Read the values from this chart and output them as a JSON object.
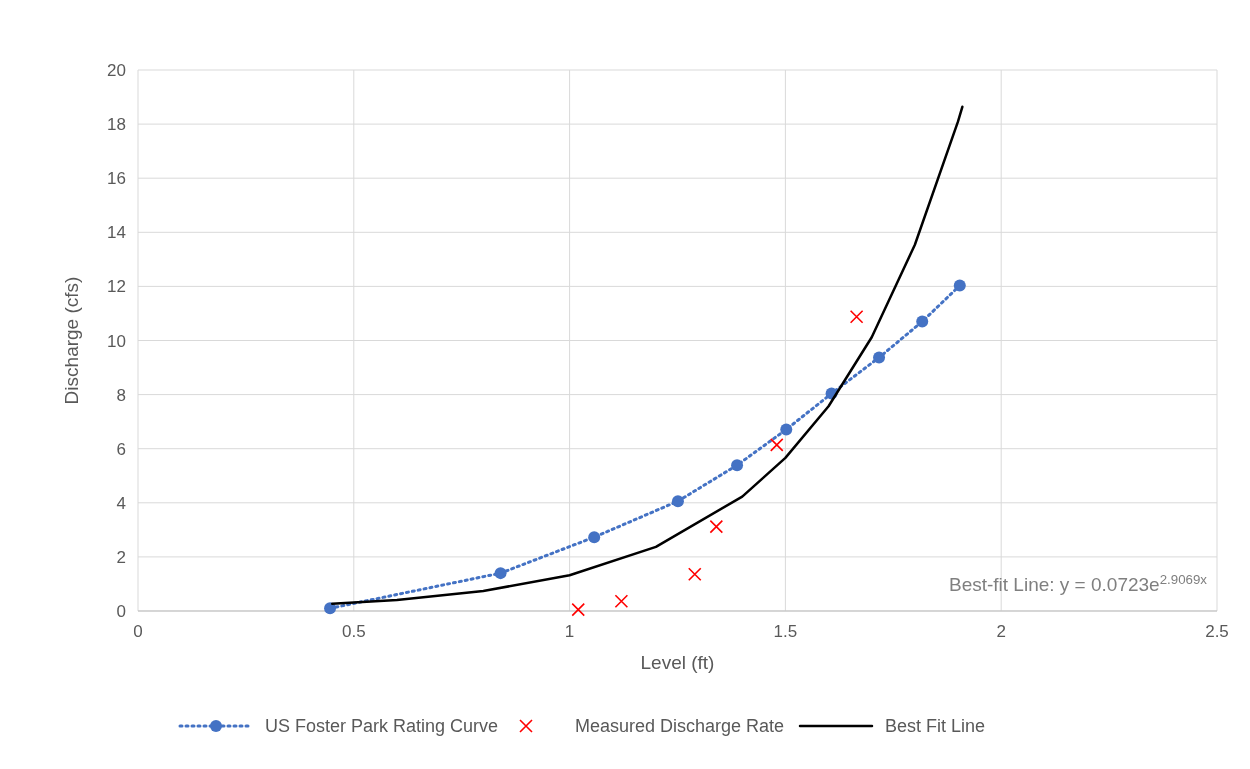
{
  "chart_data": {
    "type": "line",
    "xlabel": "Level (ft)",
    "ylabel": "Discharge (cfs)",
    "xlim": [
      0,
      2.5
    ],
    "xticks": [
      0,
      0.5,
      1,
      1.5,
      2,
      2.5
    ],
    "ylim": [
      0,
      20
    ],
    "yticks": [
      0,
      2,
      4,
      6,
      8,
      10,
      12,
      14,
      16,
      18,
      20
    ],
    "grid": true,
    "legend": "bottom",
    "annotations": [
      "Best-fit Line: y = 0.0723e$^{2.9069x}$"
    ],
    "series": [
      {
        "name": "US Foster Park Rating Curve",
        "type": "line",
        "color": "#4472c4",
        "marker": "circle",
        "line_style": "dotted",
        "x": [
          0.445,
          0.84,
          1.057,
          1.251,
          1.388,
          1.502,
          1.607,
          1.717,
          1.817,
          1.904
        ],
        "values": [
          0.1,
          1.4,
          2.73,
          4.06,
          5.39,
          6.71,
          8.04,
          9.37,
          10.7,
          12.03
        ]
      },
      {
        "name": "Measured Discharge Rate",
        "type": "scatter",
        "color": "#ff0000",
        "marker": "cross",
        "x": [
          1.02,
          1.12,
          1.29,
          1.34,
          1.48,
          1.665
        ],
        "values": [
          0.05,
          0.36,
          1.36,
          3.12,
          6.14,
          10.88
        ]
      },
      {
        "name": "Best Fit Line",
        "type": "line",
        "color": "#000000",
        "marker": "none",
        "line_style": "solid",
        "x": [
          0.45,
          0.6,
          0.8,
          1.0,
          1.2,
          1.4,
          1.5,
          1.6,
          1.7,
          1.8,
          1.9,
          1.91
        ],
        "values": [
          0.27,
          0.41,
          0.74,
          1.32,
          2.37,
          4.23,
          5.66,
          7.57,
          10.12,
          13.54,
          18.1,
          18.64
        ]
      }
    ]
  }
}
